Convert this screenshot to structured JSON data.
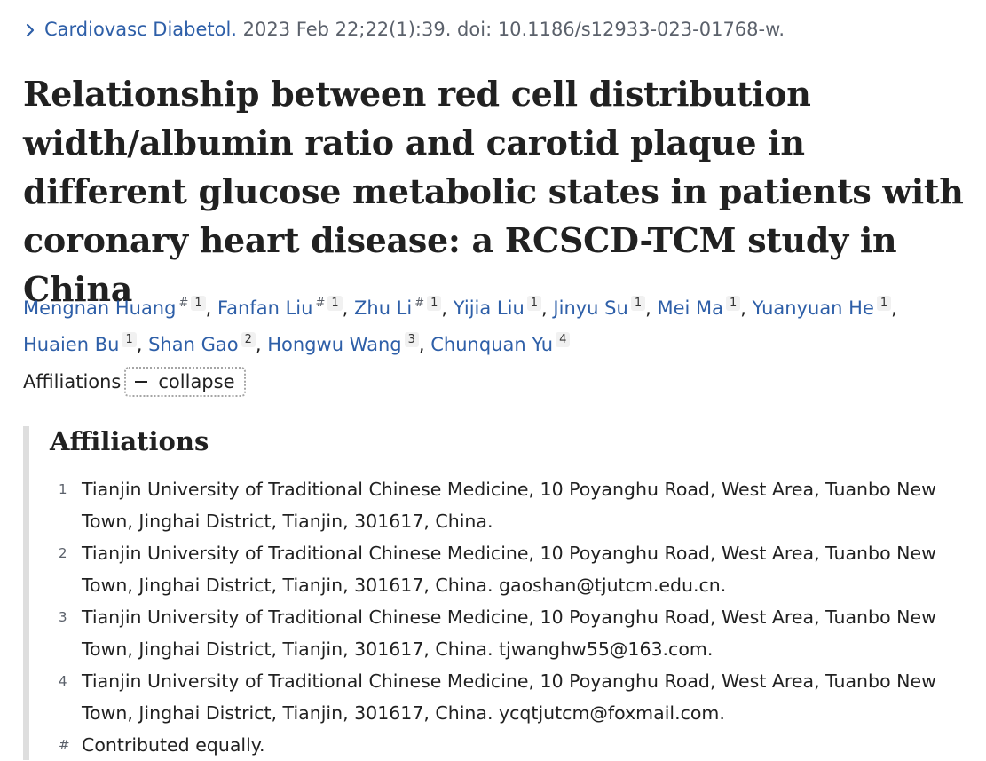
{
  "citation": {
    "journal": "Cardiovasc Diabetol.",
    "details": "2023 Feb 22;22(1):39. doi: 10.1186/s12933-023-01768-w."
  },
  "title": "Relationship between red cell distribution width/albumin ratio and carotid plaque in different glucose metabolic states in patients with coronary heart disease: a RCSCD-TCM study in China",
  "authors": [
    {
      "name": "Mengnan Huang",
      "equal": "#",
      "aff": "1"
    },
    {
      "name": "Fanfan Liu",
      "equal": "#",
      "aff": "1"
    },
    {
      "name": "Zhu Li",
      "equal": "#",
      "aff": "1"
    },
    {
      "name": "Yijia Liu",
      "equal": "",
      "aff": "1"
    },
    {
      "name": "Jinyu Su",
      "equal": "",
      "aff": "1"
    },
    {
      "name": "Mei Ma",
      "equal": "",
      "aff": "1"
    },
    {
      "name": "Yuanyuan He",
      "equal": "",
      "aff": "1"
    },
    {
      "name": "Huaien Bu",
      "equal": "",
      "aff": "1"
    },
    {
      "name": "Shan Gao",
      "equal": "",
      "aff": "2"
    },
    {
      "name": "Hongwu Wang",
      "equal": "",
      "aff": "3"
    },
    {
      "name": "Chunquan Yu",
      "equal": "",
      "aff": "4"
    }
  ],
  "author_separator": ",",
  "affiliations_toggle": {
    "label": "Affiliations",
    "button_label": "collapse",
    "button_icon": "minus-icon"
  },
  "affiliations": {
    "heading": "Affiliations",
    "items": [
      {
        "num": "1",
        "text": "Tianjin University of Traditional Chinese Medicine, 10 Poyanghu Road, West Area, Tuanbo New Town, Jinghai District, Tianjin, 301617, China."
      },
      {
        "num": "2",
        "text": "Tianjin University of Traditional Chinese Medicine, 10 Poyanghu Road, West Area, Tuanbo New Town, Jinghai District, Tianjin, 301617, China. gaoshan@tjutcm.edu.cn."
      },
      {
        "num": "3",
        "text": "Tianjin University of Traditional Chinese Medicine, 10 Poyanghu Road, West Area, Tuanbo New Town, Jinghai District, Tianjin, 301617, China. tjwanghw55@163.com."
      },
      {
        "num": "4",
        "text": "Tianjin University of Traditional Chinese Medicine, 10 Poyanghu Road, West Area, Tuanbo New Town, Jinghai District, Tianjin, 301617, China. ycqtjutcm@foxmail.com."
      },
      {
        "num": "#",
        "text": "Contributed equally."
      }
    ]
  },
  "colors": {
    "link": "#2e5fa8",
    "text": "#212121",
    "muted": "#5b616b",
    "panel_border": "#dedede"
  }
}
